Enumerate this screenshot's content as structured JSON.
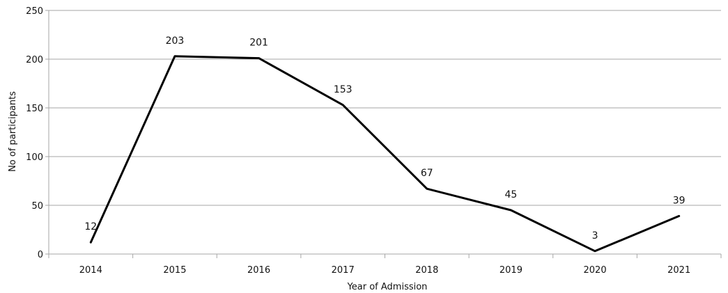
{
  "chart_data": {
    "type": "line",
    "categories": [
      "2014",
      "2015",
      "2016",
      "2017",
      "2018",
      "2019",
      "2020",
      "2021"
    ],
    "series": [
      {
        "values": [
          12,
          203,
          201,
          153,
          67,
          45,
          3,
          39
        ]
      }
    ],
    "xlabel": "Year of Admission",
    "ylabel": "No of participants",
    "ylim": [
      0,
      250
    ],
    "yticks": [
      0,
      50,
      100,
      150,
      200,
      250
    ],
    "grid": true,
    "data_labels": true,
    "line_color": "#000000",
    "grid_color": "#a6a6a6"
  }
}
